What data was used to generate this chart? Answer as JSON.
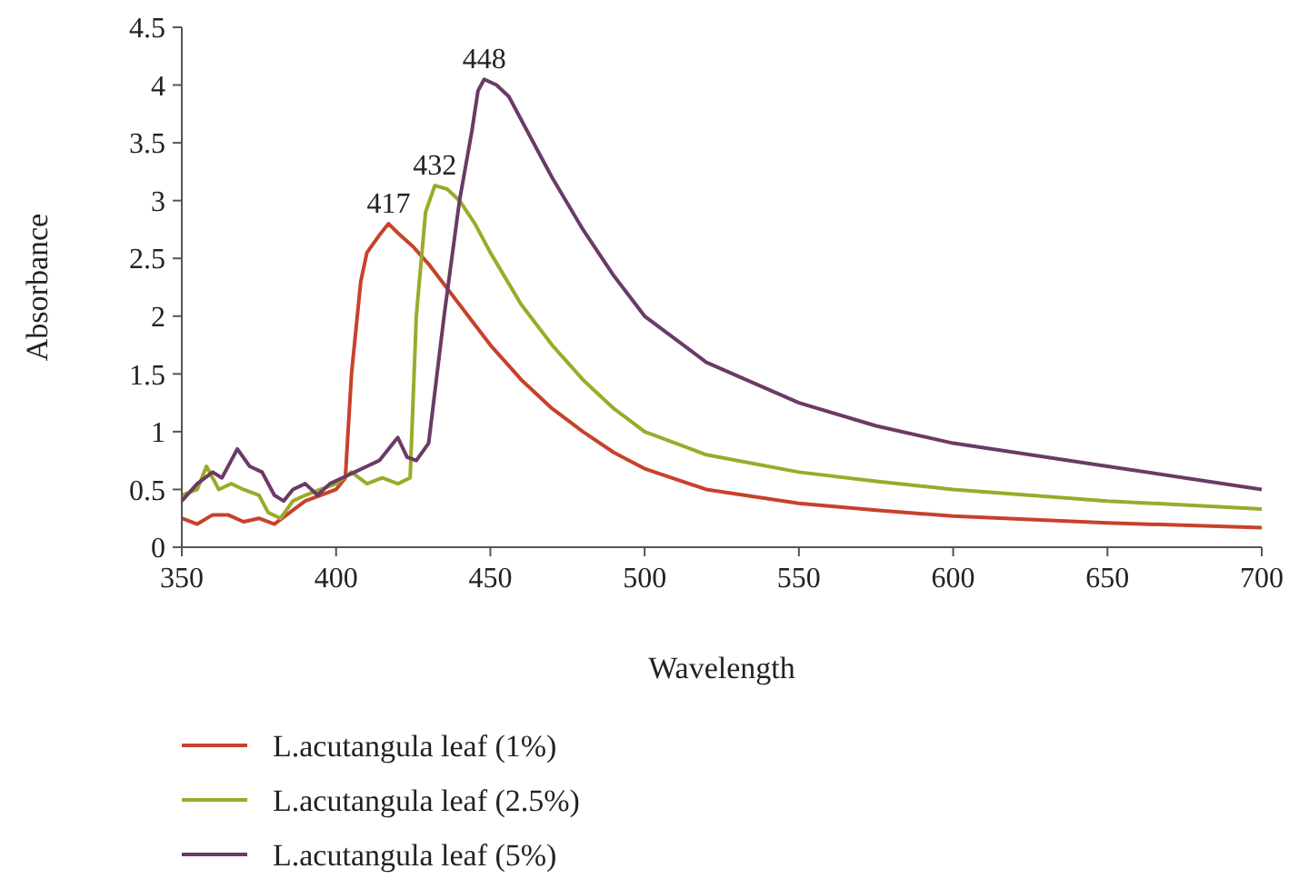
{
  "chart_data": {
    "type": "line",
    "xlabel": "Wavelength",
    "ylabel": "Absorbance",
    "xlim": [
      350,
      700
    ],
    "xticks": [
      350,
      400,
      450,
      500,
      550,
      600,
      650,
      700
    ],
    "ylim": [
      0,
      4.5
    ],
    "yticks": [
      0,
      0.5,
      1,
      1.5,
      2,
      2.5,
      3,
      3.5,
      4,
      4.5
    ],
    "grid": false,
    "legend": "bottom",
    "marker": "none",
    "line_style": "solid",
    "annotations": [
      {
        "text": "417",
        "x": 417,
        "y": 2.8
      },
      {
        "text": "432",
        "x": 432,
        "y": 3.13
      },
      {
        "text": "448",
        "x": 448,
        "y": 4.05
      }
    ],
    "series": [
      {
        "name": "L.acutangula leaf (1%)",
        "color": "#c8412b",
        "x": [
          350,
          355,
          360,
          365,
          370,
          375,
          380,
          385,
          390,
          395,
          400,
          403,
          405,
          408,
          410,
          414,
          417,
          420,
          425,
          430,
          440,
          450,
          460,
          470,
          480,
          490,
          500,
          520,
          550,
          575,
          600,
          650,
          700
        ],
        "values": [
          0.25,
          0.2,
          0.28,
          0.28,
          0.22,
          0.25,
          0.2,
          0.3,
          0.4,
          0.45,
          0.5,
          0.6,
          1.5,
          2.3,
          2.55,
          2.7,
          2.8,
          2.72,
          2.6,
          2.45,
          2.1,
          1.75,
          1.45,
          1.2,
          1.0,
          0.82,
          0.68,
          0.5,
          0.38,
          0.32,
          0.27,
          0.21,
          0.17
        ]
      },
      {
        "name": "L.acutangula leaf (2.5%)",
        "color": "#9aab2a",
        "x": [
          350,
          355,
          358,
          362,
          366,
          370,
          375,
          378,
          382,
          386,
          390,
          395,
          400,
          405,
          410,
          415,
          420,
          424,
          426,
          429,
          432,
          436,
          440,
          445,
          450,
          460,
          470,
          480,
          490,
          500,
          520,
          550,
          575,
          600,
          650,
          700
        ],
        "values": [
          0.45,
          0.5,
          0.7,
          0.5,
          0.55,
          0.5,
          0.45,
          0.3,
          0.25,
          0.4,
          0.45,
          0.5,
          0.55,
          0.65,
          0.55,
          0.6,
          0.55,
          0.6,
          2.0,
          2.9,
          3.13,
          3.1,
          3.0,
          2.8,
          2.55,
          2.1,
          1.75,
          1.45,
          1.2,
          1.0,
          0.8,
          0.65,
          0.57,
          0.5,
          0.4,
          0.33
        ]
      },
      {
        "name": "L.acutangula leaf (5%)",
        "color": "#6b3a66",
        "x": [
          350,
          355,
          360,
          363,
          366,
          368,
          372,
          376,
          380,
          383,
          386,
          390,
          394,
          398,
          402,
          406,
          410,
          414,
          417,
          420,
          423,
          426,
          430,
          435,
          440,
          444,
          446,
          448,
          452,
          456,
          460,
          470,
          480,
          490,
          500,
          520,
          550,
          575,
          600,
          650,
          700
        ],
        "values": [
          0.4,
          0.55,
          0.65,
          0.6,
          0.75,
          0.85,
          0.7,
          0.65,
          0.45,
          0.4,
          0.5,
          0.55,
          0.45,
          0.55,
          0.6,
          0.65,
          0.7,
          0.75,
          0.85,
          0.95,
          0.78,
          0.75,
          0.9,
          2.0,
          3.0,
          3.6,
          3.95,
          4.05,
          4.0,
          3.9,
          3.7,
          3.2,
          2.75,
          2.35,
          2.0,
          1.6,
          1.25,
          1.05,
          0.9,
          0.7,
          0.5
        ]
      }
    ]
  }
}
